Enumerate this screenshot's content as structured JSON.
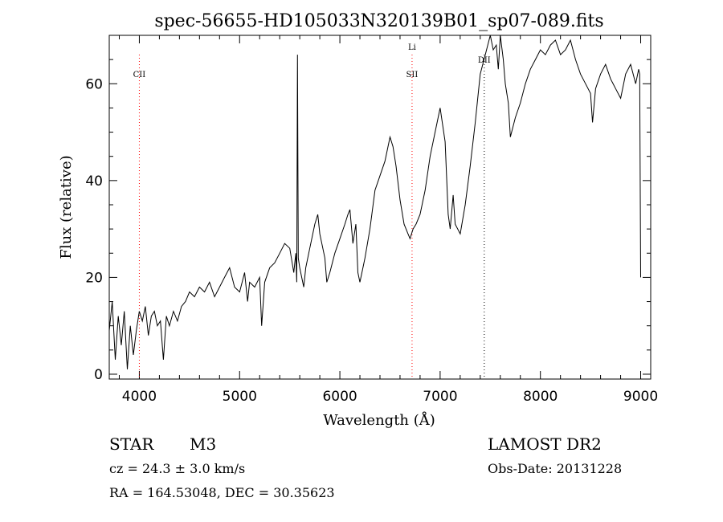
{
  "chart_data": {
    "type": "line",
    "title": "spec-56655-HD105033N320139B01_sp07-089.fits",
    "xlabel": "Wavelength (Å)",
    "ylabel": "Flux (relative)",
    "xlim": [
      3700,
      9100
    ],
    "ylim": [
      -1,
      70
    ],
    "x_ticks": [
      4000,
      5000,
      6000,
      7000,
      8000,
      9000
    ],
    "y_ticks": [
      0,
      20,
      40,
      60
    ],
    "grid": false,
    "series": [
      {
        "x": [
          3700,
          3730,
          3760,
          3790,
          3820,
          3850,
          3880,
          3910,
          3940,
          3970,
          4000,
          4030,
          4060,
          4090,
          4120,
          4150,
          4180,
          4210,
          4240,
          4270,
          4300,
          4340,
          4380,
          4420,
          4460,
          4500,
          4550,
          4600,
          4650,
          4700,
          4750,
          4800,
          4850,
          4900,
          4950,
          5000,
          5050,
          5080,
          5100,
          5150,
          5200,
          5220,
          5250,
          5300,
          5350,
          5400,
          5450,
          5500,
          5540,
          5560,
          5570,
          5577,
          5585,
          5600,
          5640,
          5660,
          5700,
          5750,
          5780,
          5800,
          5850,
          5870,
          5900,
          5950,
          6000,
          6050,
          6080,
          6100,
          6130,
          6160,
          6180,
          6200,
          6230,
          6250,
          6300,
          6350,
          6400,
          6450,
          6500,
          6530,
          6560,
          6600,
          6640,
          6680,
          6700,
          6730,
          6760,
          6800,
          6850,
          6900,
          6950,
          7000,
          7050,
          7080,
          7100,
          7130,
          7150,
          7200,
          7250,
          7300,
          7350,
          7400,
          7450,
          7500,
          7530,
          7560,
          7580,
          7600,
          7630,
          7650,
          7680,
          7700,
          7750,
          7800,
          7850,
          7900,
          7950,
          8000,
          8050,
          8100,
          8150,
          8200,
          8250,
          8300,
          8350,
          8400,
          8450,
          8500,
          8520,
          8550,
          8600,
          8650,
          8700,
          8750,
          8800,
          8850,
          8900,
          8950,
          8980,
          8990,
          9000
        ],
        "y": [
          9,
          15,
          3,
          12,
          6,
          13,
          1,
          10,
          4,
          9,
          13,
          11,
          14,
          8,
          12,
          13,
          10,
          11,
          3,
          12,
          10,
          13,
          11,
          14,
          15,
          17,
          16,
          18,
          17,
          19,
          16,
          18,
          20,
          22,
          18,
          17,
          21,
          15,
          19,
          18,
          20,
          10,
          19,
          22,
          23,
          25,
          27,
          26,
          21,
          25,
          19,
          66,
          24,
          22,
          18,
          22,
          26,
          31,
          33,
          29,
          24,
          19,
          21,
          25,
          28,
          31,
          33,
          34,
          27,
          31,
          21,
          19,
          22,
          24,
          30,
          38,
          41,
          44,
          49,
          47,
          43,
          36,
          31,
          29,
          28,
          30,
          31,
          33,
          38,
          45,
          50,
          55,
          48,
          33,
          30,
          37,
          31,
          29,
          35,
          43,
          52,
          62,
          66,
          70,
          67,
          68,
          63,
          70,
          65,
          60,
          56,
          49,
          53,
          56,
          60,
          63,
          65,
          67,
          66,
          68,
          69,
          66,
          67,
          69,
          65,
          62,
          60,
          58,
          52,
          59,
          62,
          64,
          61,
          59,
          57,
          62,
          64,
          60,
          63,
          62,
          20
        ]
      }
    ],
    "lines": [
      {
        "label": "CII",
        "x": 4000,
        "color": "#ff0000"
      },
      {
        "label": "SII",
        "x": 6720,
        "color": "#ff0000"
      },
      {
        "label": "Li",
        "x": 6720,
        "color": "#ff0000"
      },
      {
        "label": "DII",
        "x": 7440,
        "color": "#000000"
      }
    ]
  },
  "info": {
    "star_label": "STAR",
    "subclass": "M3",
    "survey": "LAMOST DR2",
    "cz": "cz = 24.3 ± 3.0 km/s",
    "obs_date": "Obs-Date: 20131228",
    "radec": "RA = 164.53048, DEC =  30.35623"
  }
}
